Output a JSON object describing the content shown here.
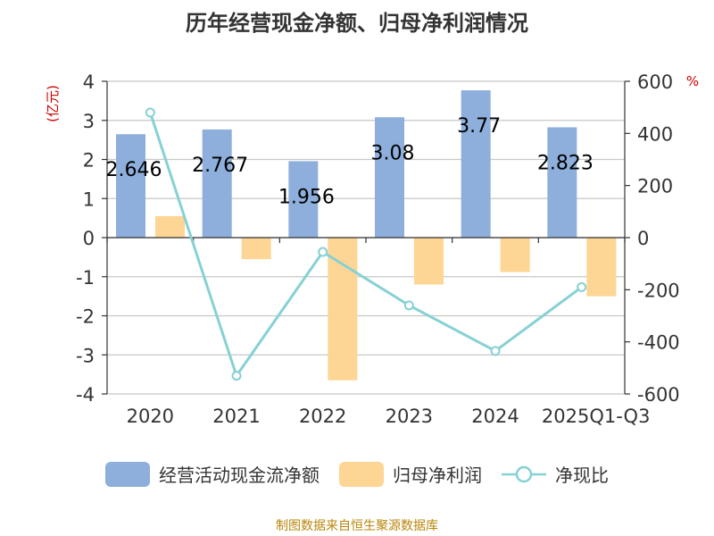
{
  "title": "历年经营现金净额、归母净利润情况",
  "source": "制图数据来自恒生聚源数据库",
  "colors": {
    "cash_bar": "#8eafdb",
    "profit_bar": "#fdd594",
    "ratio_line": "#86d1d4",
    "axis": "#333333",
    "grid": "#c8c8c8",
    "unit_text": "#cc0000"
  },
  "chart_data": {
    "type": "bar",
    "title": "历年经营现金净额、归母净利润情况",
    "categories": [
      "2020",
      "2021",
      "2022",
      "2023",
      "2024",
      "2025Q1-Q3"
    ],
    "series": [
      {
        "name": "经营活动现金流净额",
        "type": "bar",
        "axis": "left",
        "values": [
          2.646,
          2.767,
          1.956,
          3.08,
          3.77,
          2.823
        ],
        "labels": [
          "2.646",
          "2.767",
          "1.956",
          "3.08",
          "3.77",
          "2.823"
        ]
      },
      {
        "name": "归母净利润",
        "type": "bar",
        "axis": "left",
        "values": [
          0.55,
          -0.55,
          -3.65,
          -1.2,
          -0.88,
          -1.5
        ]
      },
      {
        "name": "净现比",
        "type": "line",
        "axis": "right",
        "values": [
          480,
          -530,
          -55,
          -260,
          -435,
          -190
        ]
      }
    ],
    "left_axis": {
      "unit": "(亿元)",
      "ylim": [
        -4,
        4
      ],
      "ticks": [
        4,
        3,
        2,
        1,
        0,
        -1,
        -2,
        -3,
        -4
      ],
      "tick_labels": [
        "4",
        "3",
        "2",
        "1",
        "0",
        "-1",
        "-2",
        "-3",
        "-4"
      ]
    },
    "right_axis": {
      "unit": "%",
      "ylim": [
        -600,
        600
      ],
      "ticks": [
        600,
        400,
        200,
        0,
        -200,
        -400,
        -600
      ],
      "tick_labels": [
        "600",
        "400",
        "200",
        "0",
        "-200",
        "-400",
        "-600"
      ]
    },
    "grid": true,
    "legend_position": "bottom"
  },
  "legend": [
    {
      "label": "经营活动现金流净额",
      "kind": "bar",
      "color_key": "cash_bar"
    },
    {
      "label": "归母净利润",
      "kind": "bar",
      "color_key": "profit_bar"
    },
    {
      "label": "净现比",
      "kind": "line",
      "color_key": "ratio_line"
    }
  ]
}
